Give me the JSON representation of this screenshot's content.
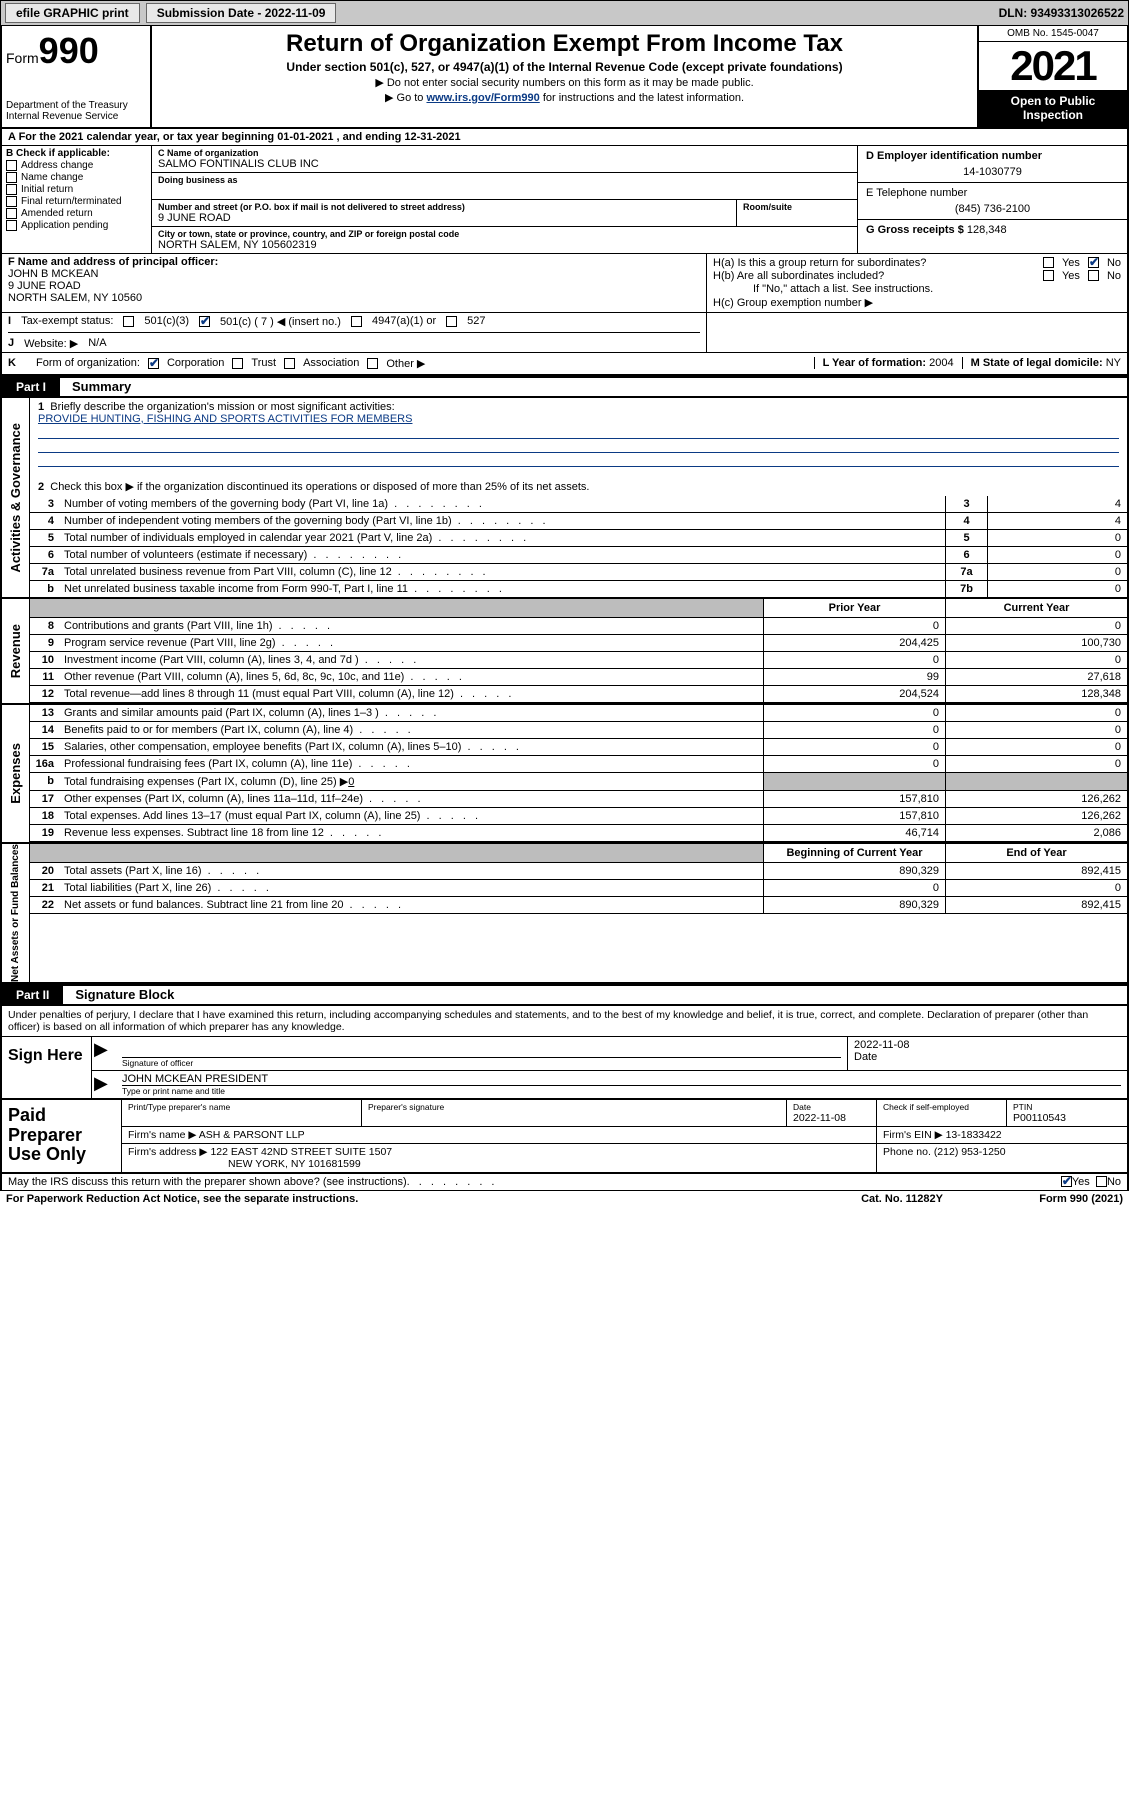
{
  "topbar": {
    "efile": "efile GRAPHIC print",
    "sub_label": "Submission Date - 2022-11-09",
    "dln": "DLN: 93493313026522"
  },
  "header": {
    "form_word": "Form",
    "form_num": "990",
    "title": "Return of Organization Exempt From Income Tax",
    "sub1": "Under section 501(c), 527, or 4947(a)(1) of the Internal Revenue Code (except private foundations)",
    "sub2": "▶ Do not enter social security numbers on this form as it may be made public.",
    "link_pre": "▶ Go to ",
    "link": "www.irs.gov/Form990",
    "link_post": " for instructions and the latest information.",
    "dept": "Department of the Treasury",
    "irs": "Internal Revenue Service",
    "omb": "OMB No. 1545-0047",
    "year": "2021",
    "open": "Open to Public Inspection"
  },
  "rowA": "A For the 2021 calendar year, or tax year beginning 01-01-2021   , and ending 12-31-2021",
  "B": {
    "hd": "B Check if applicable:",
    "items": [
      "Address change",
      "Name change",
      "Initial return",
      "Final return/terminated",
      "Amended return",
      "Application pending"
    ]
  },
  "C": {
    "name_lbl": "C Name of organization",
    "name": "SALMO FONTINALIS CLUB INC",
    "dba_lbl": "Doing business as",
    "dba": "",
    "street_lbl": "Number and street (or P.O. box if mail is not delivered to street address)",
    "street": "9 JUNE ROAD",
    "room_lbl": "Room/suite",
    "city_lbl": "City or town, state or province, country, and ZIP or foreign postal code",
    "city": "NORTH SALEM, NY  105602319"
  },
  "D": {
    "lbl": "D Employer identification number",
    "val": "14-1030779"
  },
  "E": {
    "lbl": "E Telephone number",
    "val": "(845) 736-2100"
  },
  "G": {
    "lbl": "G Gross receipts $",
    "val": "128,348"
  },
  "F": {
    "lbl": "F  Name and address of principal officer:",
    "name": "JOHN B MCKEAN",
    "addr1": "9 JUNE ROAD",
    "addr2": "NORTH SALEM, NY  10560"
  },
  "H": {
    "a": "H(a)  Is this a group return for subordinates?",
    "a_yes": "Yes",
    "a_no": "No",
    "b": "H(b)  Are all subordinates included?",
    "b_yes": "Yes",
    "b_no": "No",
    "b_note": "If \"No,\" attach a list. See instructions.",
    "c": "H(c)  Group exemption number ▶"
  },
  "I": {
    "lbl": "I",
    "desc": "Tax-exempt status:",
    "o1": "501(c)(3)",
    "o2": "501(c) ( 7 ) ◀ (insert no.)",
    "o3": "4947(a)(1) or",
    "o4": "527"
  },
  "J": {
    "lbl": "J",
    "desc": "Website: ▶",
    "val": "N/A"
  },
  "K": {
    "lbl": "K",
    "desc": "Form of organization:",
    "o1": "Corporation",
    "o2": "Trust",
    "o3": "Association",
    "o4": "Other ▶"
  },
  "L": {
    "lbl": "L Year of formation:",
    "val": "2004"
  },
  "M": {
    "lbl": "M State of legal domicile:",
    "val": "NY"
  },
  "partI": {
    "num": "Part I",
    "title": "Summary"
  },
  "gov": {
    "side": "Activities & Governance",
    "l1": "Briefly describe the organization's mission or most significant activities:",
    "mission": "PROVIDE HUNTING, FISHING AND SPORTS ACTIVITIES FOR MEMBERS",
    "l2": "Check this box ▶      if the organization discontinued its operations or disposed of more than 25% of its net assets.",
    "rows": [
      {
        "n": "3",
        "d": "Number of voting members of the governing body (Part VI, line 1a)",
        "box": "3",
        "v": "4"
      },
      {
        "n": "4",
        "d": "Number of independent voting members of the governing body (Part VI, line 1b)",
        "box": "4",
        "v": "4"
      },
      {
        "n": "5",
        "d": "Total number of individuals employed in calendar year 2021 (Part V, line 2a)",
        "box": "5",
        "v": "0"
      },
      {
        "n": "6",
        "d": "Total number of volunteers (estimate if necessary)",
        "box": "6",
        "v": "0"
      },
      {
        "n": "7a",
        "d": "Total unrelated business revenue from Part VIII, column (C), line 12",
        "box": "7a",
        "v": "0"
      },
      {
        "n": "b",
        "d": "Net unrelated business taxable income from Form 990-T, Part I, line 11",
        "box": "7b",
        "v": "0"
      }
    ]
  },
  "yrhd": {
    "prior": "Prior Year",
    "curr": "Current Year"
  },
  "rev": {
    "side": "Revenue",
    "rows": [
      {
        "n": "8",
        "d": "Contributions and grants (Part VIII, line 1h)",
        "p": "0",
        "c": "0"
      },
      {
        "n": "9",
        "d": "Program service revenue (Part VIII, line 2g)",
        "p": "204,425",
        "c": "100,730"
      },
      {
        "n": "10",
        "d": "Investment income (Part VIII, column (A), lines 3, 4, and 7d )",
        "p": "0",
        "c": "0"
      },
      {
        "n": "11",
        "d": "Other revenue (Part VIII, column (A), lines 5, 6d, 8c, 9c, 10c, and 11e)",
        "p": "99",
        "c": "27,618"
      },
      {
        "n": "12",
        "d": "Total revenue—add lines 8 through 11 (must equal Part VIII, column (A), line 12)",
        "p": "204,524",
        "c": "128,348"
      }
    ]
  },
  "exp": {
    "side": "Expenses",
    "rows": [
      {
        "n": "13",
        "d": "Grants and similar amounts paid (Part IX, column (A), lines 1–3 )",
        "p": "0",
        "c": "0"
      },
      {
        "n": "14",
        "d": "Benefits paid to or for members (Part IX, column (A), line 4)",
        "p": "0",
        "c": "0"
      },
      {
        "n": "15",
        "d": "Salaries, other compensation, employee benefits (Part IX, column (A), lines 5–10)",
        "p": "0",
        "c": "0"
      },
      {
        "n": "16a",
        "d": "Professional fundraising fees (Part IX, column (A), line 11e)",
        "p": "0",
        "c": "0"
      }
    ],
    "l16b_pre": "Total fundraising expenses (Part IX, column (D), line 25) ▶",
    "l16b_val": "0",
    "rows2": [
      {
        "n": "17",
        "d": "Other expenses (Part IX, column (A), lines 11a–11d, 11f–24e)",
        "p": "157,810",
        "c": "126,262"
      },
      {
        "n": "18",
        "d": "Total expenses. Add lines 13–17 (must equal Part IX, column (A), line 25)",
        "p": "157,810",
        "c": "126,262"
      },
      {
        "n": "19",
        "d": "Revenue less expenses. Subtract line 18 from line 12",
        "p": "46,714",
        "c": "2,086"
      }
    ]
  },
  "na": {
    "side": "Net Assets or Fund Balances",
    "hd_p": "Beginning of Current Year",
    "hd_c": "End of Year",
    "rows": [
      {
        "n": "20",
        "d": "Total assets (Part X, line 16)",
        "p": "890,329",
        "c": "892,415"
      },
      {
        "n": "21",
        "d": "Total liabilities (Part X, line 26)",
        "p": "0",
        "c": "0"
      },
      {
        "n": "22",
        "d": "Net assets or fund balances. Subtract line 21 from line 20",
        "p": "890,329",
        "c": "892,415"
      }
    ]
  },
  "partII": {
    "num": "Part II",
    "title": "Signature Block"
  },
  "sig": {
    "note": "Under penalties of perjury, I declare that I have examined this return, including accompanying schedules and statements, and to the best of my knowledge and belief, it is true, correct, and complete. Declaration of preparer (other than officer) is based on all information of which preparer has any knowledge.",
    "here": "Sign Here",
    "sig_lbl": "Signature of officer",
    "date_lbl": "Date",
    "date": "2022-11-08",
    "name": "JOHN MCKEAN  PRESIDENT",
    "name_lbl": "Type or print name and title"
  },
  "prep": {
    "left": "Paid Preparer Use Only",
    "r1": {
      "a": "Print/Type preparer's name",
      "b": "Preparer's signature",
      "c": "Date",
      "cval": "2022-11-08",
      "d": "Check        if self-employed",
      "e": "PTIN",
      "eval": "P00110543"
    },
    "r2": {
      "a": "Firm's name     ▶",
      "aval": "ASH & PARSONT LLP",
      "b": "Firm's EIN ▶",
      "bval": "13-1833422"
    },
    "r3": {
      "a": "Firm's address ▶",
      "aval1": "122 EAST 42ND STREET SUITE 1507",
      "aval2": "NEW YORK, NY  101681599",
      "b": "Phone no.",
      "bval": "(212) 953-1250"
    }
  },
  "discuss": {
    "q": "May the IRS discuss this return with the preparer shown above? (see instructions)",
    "yes": "Yes",
    "no": "No"
  },
  "footer": {
    "l": "For Paperwork Reduction Act Notice, see the separate instructions.",
    "m": "Cat. No. 11282Y",
    "r": "Form 990 (2021)"
  }
}
